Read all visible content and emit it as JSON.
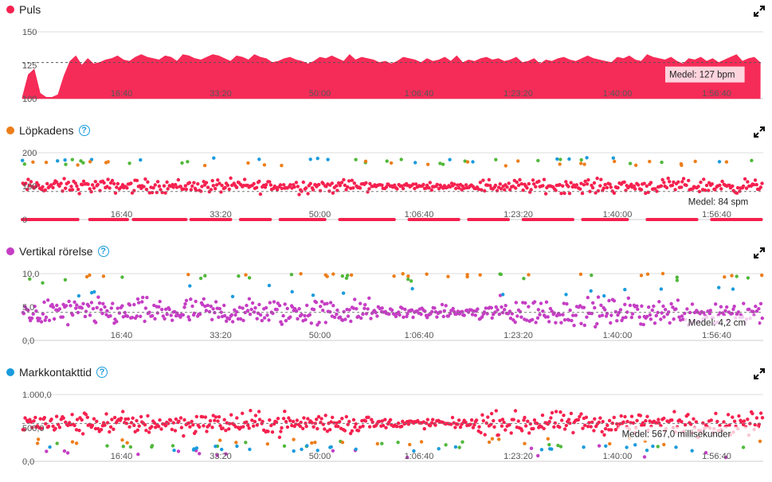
{
  "colors": {
    "heart": "#f5214f",
    "cadence": "#ec7e1a",
    "vertical": "#c53ec4",
    "contact": "#1a9bdc",
    "green": "#51b83b",
    "grid": "#dddddd",
    "avgline": "#777777"
  },
  "x_labels": [
    "16:40",
    "33:20",
    "50:00",
    "1:06:40",
    "1:23:20",
    "1:40:00",
    "1:56:40"
  ],
  "panels": [
    {
      "id": "puls",
      "title": "Puls",
      "dot_color": "#f5214f",
      "help": false,
      "y_ticks": [
        "150",
        "125",
        "100"
      ],
      "avg_label": "Medel: 127 bpm",
      "expand_icon": "expand-icon"
    },
    {
      "id": "cadence",
      "title": "Löpkadens",
      "dot_color": "#ec7e1a",
      "help": true,
      "y_ticks": [
        "200",
        "100",
        "0"
      ],
      "avg_label": "Medel: 84 spm",
      "expand_icon": "expand-icon"
    },
    {
      "id": "vertical",
      "title": "Vertikal rörelse",
      "dot_color": "#c53ec4",
      "help": true,
      "y_ticks": [
        "10,0",
        "5,0",
        "0,0"
      ],
      "avg_label": "Medel: 4,2 cm",
      "expand_icon": "expand-icon"
    },
    {
      "id": "contact",
      "title": "Markkontakttid",
      "dot_color": "#1a9bdc",
      "help": true,
      "y_ticks": [
        "1.000,0",
        "500,0",
        "0,0"
      ],
      "avg_label": "Medel: 567,0 millisekunder",
      "expand_icon": "expand-icon"
    }
  ],
  "chart_data": [
    {
      "type": "area",
      "title": "Puls",
      "ylim": [
        100,
        150
      ],
      "x_range_seconds": [
        0,
        7470
      ],
      "x_tick_labels": [
        "16:40",
        "33:20",
        "50:00",
        "1:06:40",
        "1:23:20",
        "1:40:00",
        "1:56:40"
      ],
      "y_tick_labels": [
        "150",
        "125",
        "100"
      ],
      "average": 127,
      "average_label": "Medel: 127 bpm",
      "x": [
        0,
        60,
        120,
        180,
        240,
        300,
        360,
        420,
        480,
        540,
        600,
        660,
        720,
        780,
        840,
        900,
        960,
        1020,
        1080,
        1140,
        1200,
        1260,
        1320,
        1380,
        1440,
        1500,
        1560,
        1620,
        1680,
        1740,
        1800,
        1860,
        1920,
        1980,
        2040,
        2100,
        2160,
        2220,
        2280,
        2340,
        2400,
        2460,
        2520,
        2580,
        2640,
        2700,
        2760,
        2820,
        2880,
        2940,
        3000,
        3060,
        3120,
        3180,
        3240,
        3300,
        3360,
        3420,
        3480,
        3540,
        3600,
        3660,
        3720,
        3780,
        3840,
        3900,
        3960,
        4020,
        4080,
        4140,
        4200,
        4260,
        4320,
        4380,
        4440,
        4500,
        4560,
        4620,
        4680,
        4740,
        4800,
        4860,
        4920,
        4980,
        5040,
        5100,
        5160,
        5220,
        5280,
        5340,
        5400,
        5460,
        5520,
        5580,
        5640,
        5700,
        5760,
        5820,
        5880,
        5940,
        6000,
        6060,
        6120,
        6180,
        6240,
        6300,
        6360,
        6420,
        6480,
        6540,
        6600,
        6660,
        6720,
        6780,
        6840,
        6900,
        6960,
        7020,
        7080,
        7140,
        7200,
        7260,
        7320,
        7380,
        7440
      ],
      "y": [
        101,
        118,
        122,
        104,
        101,
        101,
        103,
        117,
        128,
        132,
        125,
        130,
        126,
        127,
        129,
        130,
        132,
        129,
        128,
        131,
        133,
        131,
        130,
        129,
        132,
        131,
        128,
        133,
        132,
        130,
        129,
        131,
        133,
        132,
        130,
        128,
        132,
        131,
        129,
        133,
        131,
        130,
        127,
        128,
        130,
        131,
        129,
        128,
        126,
        128,
        131,
        130,
        132,
        130,
        128,
        133,
        129,
        131,
        130,
        129,
        127,
        128,
        126,
        128,
        131,
        130,
        129,
        127,
        130,
        128,
        129,
        131,
        128,
        132,
        127,
        129,
        128,
        130,
        131,
        129,
        130,
        128,
        129,
        131,
        127,
        128,
        130,
        126,
        129,
        128,
        130,
        131,
        129,
        128,
        130,
        132,
        130,
        129,
        128,
        127,
        131,
        130,
        132,
        129,
        128,
        133,
        131,
        130,
        129,
        131,
        128,
        126,
        130,
        129,
        131,
        128,
        130,
        127,
        129,
        131,
        133,
        128,
        130,
        131,
        127
      ]
    },
    {
      "type": "scatter",
      "title": "Löpkadens",
      "ylim": [
        0,
        200
      ],
      "x_range_seconds": [
        0,
        7470
      ],
      "x_tick_labels": [
        "16:40",
        "33:20",
        "50:00",
        "1:06:40",
        "1:23:20",
        "1:40:00",
        "1:56:40"
      ],
      "y_tick_labels": [
        "200",
        "100",
        "0"
      ],
      "average": 84,
      "average_label": "Medel: 84 spm",
      "zero_stretches_seconds": [
        [
          0,
          560
        ],
        [
          680,
          1060
        ],
        [
          1120,
          1650
        ],
        [
          1700,
          2100
        ],
        [
          2200,
          2500
        ],
        [
          2600,
          3050
        ],
        [
          3200,
          3750
        ],
        [
          3900,
          4400
        ],
        [
          4500,
          4900
        ],
        [
          5050,
          5550
        ],
        [
          5650,
          6100
        ],
        [
          6300,
          6800
        ],
        [
          6950,
          7450
        ]
      ],
      "series": [
        {
          "name": "",
          "color": "#f5214f",
          "typical_range": [
            75,
            125
          ],
          "center": 100
        },
        {
          "name": "",
          "color": "#1a9bdc",
          "typical_range": [
            170,
            185
          ]
        },
        {
          "name": "",
          "color": "#51b83b",
          "typical_range": [
            165,
            180
          ]
        },
        {
          "name": "",
          "color": "#ec7e1a",
          "typical_range": [
            160,
            175
          ]
        }
      ]
    },
    {
      "type": "scatter",
      "title": "Vertikal rörelse",
      "ylim": [
        0,
        10
      ],
      "x_range_seconds": [
        0,
        7470
      ],
      "x_tick_labels": [
        "16:40",
        "33:20",
        "50:00",
        "1:06:40",
        "1:23:20",
        "1:40:00",
        "1:56:40"
      ],
      "y_tick_labels": [
        "10,0",
        "5,0",
        "0,0"
      ],
      "average": 4.2,
      "average_label": "Medel: 4,2 cm",
      "series": [
        {
          "name": "",
          "color": "#c53ec4",
          "typical_range": [
            1.5,
            6.5
          ],
          "center": 4.2
        },
        {
          "name": "",
          "color": "#1a9bdc",
          "typical_range": [
            6.5,
            8.5
          ]
        },
        {
          "name": "",
          "color": "#51b83b",
          "typical_range": [
            8.5,
            10
          ]
        },
        {
          "name": "",
          "color": "#ec7e1a",
          "typical_range": [
            9.5,
            10
          ]
        }
      ]
    },
    {
      "type": "scatter",
      "title": "Markkontakttid",
      "ylim": [
        0,
        1000
      ],
      "x_range_seconds": [
        0,
        7470
      ],
      "x_tick_labels": [
        "16:40",
        "33:20",
        "50:00",
        "1:06:40",
        "1:23:20",
        "1:40:00",
        "1:56:40"
      ],
      "y_tick_labels": [
        "1.000,0",
        "500,0",
        "0,0"
      ],
      "average": 567.0,
      "average_label": "Medel: 567,0 millisekunder",
      "series": [
        {
          "name": "",
          "color": "#f5214f",
          "typical_range": [
            400,
            800
          ],
          "center": 567
        },
        {
          "name": "",
          "color": "#c53ec4",
          "typical_range": [
            50,
            250
          ]
        },
        {
          "name": "",
          "color": "#51b83b",
          "typical_range": [
            200,
            300
          ]
        },
        {
          "name": "",
          "color": "#ec7e1a",
          "typical_range": [
            250,
            350
          ]
        },
        {
          "name": "",
          "color": "#1a9bdc",
          "typical_range": [
            150,
            250
          ]
        }
      ]
    }
  ]
}
